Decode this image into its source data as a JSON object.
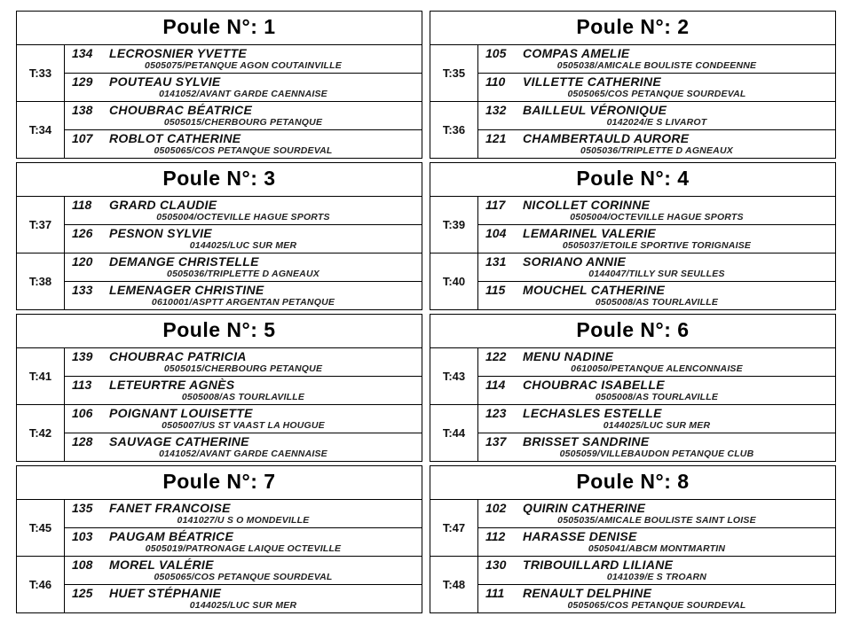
{
  "title_prefix": "Poule N°: ",
  "poules": [
    {
      "num": 1,
      "matches": [
        {
          "time": "T:33",
          "players": [
            {
              "num": "134",
              "name": "LECROSNIER YVETTE",
              "club": "0505075/PETANQUE AGON COUTAINVILLE"
            },
            {
              "num": "129",
              "name": "POUTEAU SYLVIE",
              "club": "0141052/AVANT GARDE CAENNAISE"
            }
          ]
        },
        {
          "time": "T:34",
          "players": [
            {
              "num": "138",
              "name": "CHOUBRAC BÉATRICE",
              "club": "0505015/CHERBOURG PETANQUE"
            },
            {
              "num": "107",
              "name": "ROBLOT CATHERINE",
              "club": "0505065/COS   PETANQUE SOURDEVAL"
            }
          ]
        }
      ]
    },
    {
      "num": 2,
      "matches": [
        {
          "time": "T:35",
          "players": [
            {
              "num": "105",
              "name": "COMPAS AMELIE",
              "club": "0505038/AMICALE BOULISTE CONDEENNE"
            },
            {
              "num": "110",
              "name": "VILLETTE CATHERINE",
              "club": "0505065/COS   PETANQUE SOURDEVAL"
            }
          ]
        },
        {
          "time": "T:36",
          "players": [
            {
              "num": "132",
              "name": "BAILLEUL VÉRONIQUE",
              "club": "0142024/E S LIVAROT"
            },
            {
              "num": "121",
              "name": "CHAMBERTAULD AURORE",
              "club": "0505036/TRIPLETTE D AGNEAUX"
            }
          ]
        }
      ]
    },
    {
      "num": 3,
      "matches": [
        {
          "time": "T:37",
          "players": [
            {
              "num": "118",
              "name": "GRARD CLAUDIE",
              "club": "0505004/OCTEVILLE HAGUE SPORTS"
            },
            {
              "num": "126",
              "name": "PESNON SYLVIE",
              "club": "0144025/LUC SUR MER"
            }
          ]
        },
        {
          "time": "T:38",
          "players": [
            {
              "num": "120",
              "name": "DEMANGE CHRISTELLE",
              "club": "0505036/TRIPLETTE D AGNEAUX"
            },
            {
              "num": "133",
              "name": "LEMENAGER CHRISTINE",
              "club": "0610001/ASPTT ARGENTAN PETANQUE"
            }
          ]
        }
      ]
    },
    {
      "num": 4,
      "matches": [
        {
          "time": "T:39",
          "players": [
            {
              "num": "117",
              "name": "NICOLLET CORINNE",
              "club": "0505004/OCTEVILLE HAGUE SPORTS"
            },
            {
              "num": "104",
              "name": "LEMARINEL VALERIE",
              "club": "0505037/ETOILE SPORTIVE TORIGNAISE"
            }
          ]
        },
        {
          "time": "T:40",
          "players": [
            {
              "num": "131",
              "name": "SORIANO ANNIE",
              "club": "0144047/TILLY SUR SEULLES"
            },
            {
              "num": "115",
              "name": "MOUCHEL CATHERINE",
              "club": "0505008/AS   TOURLAVILLE"
            }
          ]
        }
      ]
    },
    {
      "num": 5,
      "matches": [
        {
          "time": "T:41",
          "players": [
            {
              "num": "139",
              "name": "CHOUBRAC PATRICIA",
              "club": "0505015/CHERBOURG PETANQUE"
            },
            {
              "num": "113",
              "name": "LETEURTRE AGNÈS",
              "club": "0505008/AS   TOURLAVILLE"
            }
          ]
        },
        {
          "time": "T:42",
          "players": [
            {
              "num": "106",
              "name": "POIGNANT LOUISETTE",
              "club": "0505007/US   ST VAAST LA HOUGUE"
            },
            {
              "num": "128",
              "name": "SAUVAGE CATHERINE",
              "club": "0141052/AVANT GARDE CAENNAISE"
            }
          ]
        }
      ]
    },
    {
      "num": 6,
      "matches": [
        {
          "time": "T:43",
          "players": [
            {
              "num": "122",
              "name": "MENU NADINE",
              "club": "0610050/PETANQUE ALENCONNAISE"
            },
            {
              "num": "114",
              "name": "CHOUBRAC ISABELLE",
              "club": "0505008/AS   TOURLAVILLE"
            }
          ]
        },
        {
          "time": "T:44",
          "players": [
            {
              "num": "123",
              "name": "LECHASLES ESTELLE",
              "club": "0144025/LUC SUR MER"
            },
            {
              "num": "137",
              "name": "BRISSET SANDRINE",
              "club": "0505059/VILLEBAUDON   PETANQUE   CLUB"
            }
          ]
        }
      ]
    },
    {
      "num": 7,
      "matches": [
        {
          "time": "T:45",
          "players": [
            {
              "num": "135",
              "name": "FANET FRANCOISE",
              "club": "0141027/U S O MONDEVILLE"
            },
            {
              "num": "103",
              "name": "PAUGAM BÉATRICE",
              "club": "0505019/PATRONAGE LAIQUE OCTEVILLE"
            }
          ]
        },
        {
          "time": "T:46",
          "players": [
            {
              "num": "108",
              "name": "MOREL VALÉRIE",
              "club": "0505065/COS   PETANQUE SOURDEVAL"
            },
            {
              "num": "125",
              "name": "HUET STÉPHANIE",
              "club": "0144025/LUC SUR MER"
            }
          ]
        }
      ]
    },
    {
      "num": 8,
      "matches": [
        {
          "time": "T:47",
          "players": [
            {
              "num": "102",
              "name": "QUIRIN CATHERINE",
              "club": "0505035/AMICALE BOULISTE SAINT LOISE"
            },
            {
              "num": "112",
              "name": "HARASSE DENISE",
              "club": "0505041/ABCM MONTMARTIN"
            }
          ]
        },
        {
          "time": "T:48",
          "players": [
            {
              "num": "130",
              "name": "TRIBOUILLARD LILIANE",
              "club": "0141039/E   S   TROARN"
            },
            {
              "num": "111",
              "name": "RENAULT DELPHINE",
              "club": "0505065/COS   PETANQUE SOURDEVAL"
            }
          ]
        }
      ]
    }
  ]
}
